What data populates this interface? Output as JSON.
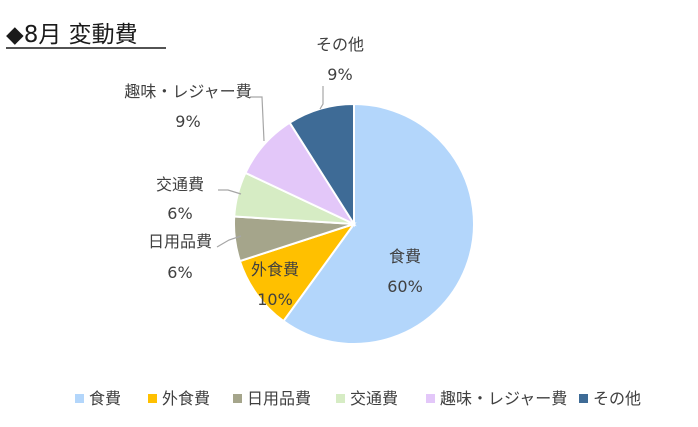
{
  "title": "◆8月 変動費",
  "chart_data": {
    "type": "pie",
    "title": "◆8月 変動費",
    "categories": [
      "食費",
      "外食費",
      "日用品費",
      "交通費",
      "趣味・レジャー費",
      "その他"
    ],
    "values": [
      60,
      10,
      6,
      6,
      9,
      9
    ],
    "value_labels": [
      "60%",
      "10%",
      "6%",
      "6%",
      "9%",
      "9%"
    ],
    "colors": [
      "#b3d6fb",
      "#ffc000",
      "#a5a58b",
      "#d6ecc4",
      "#e3c7f9",
      "#3e6b96"
    ],
    "start_angle": "12 o'clock",
    "direction": "clockwise",
    "legend": "bottom"
  }
}
